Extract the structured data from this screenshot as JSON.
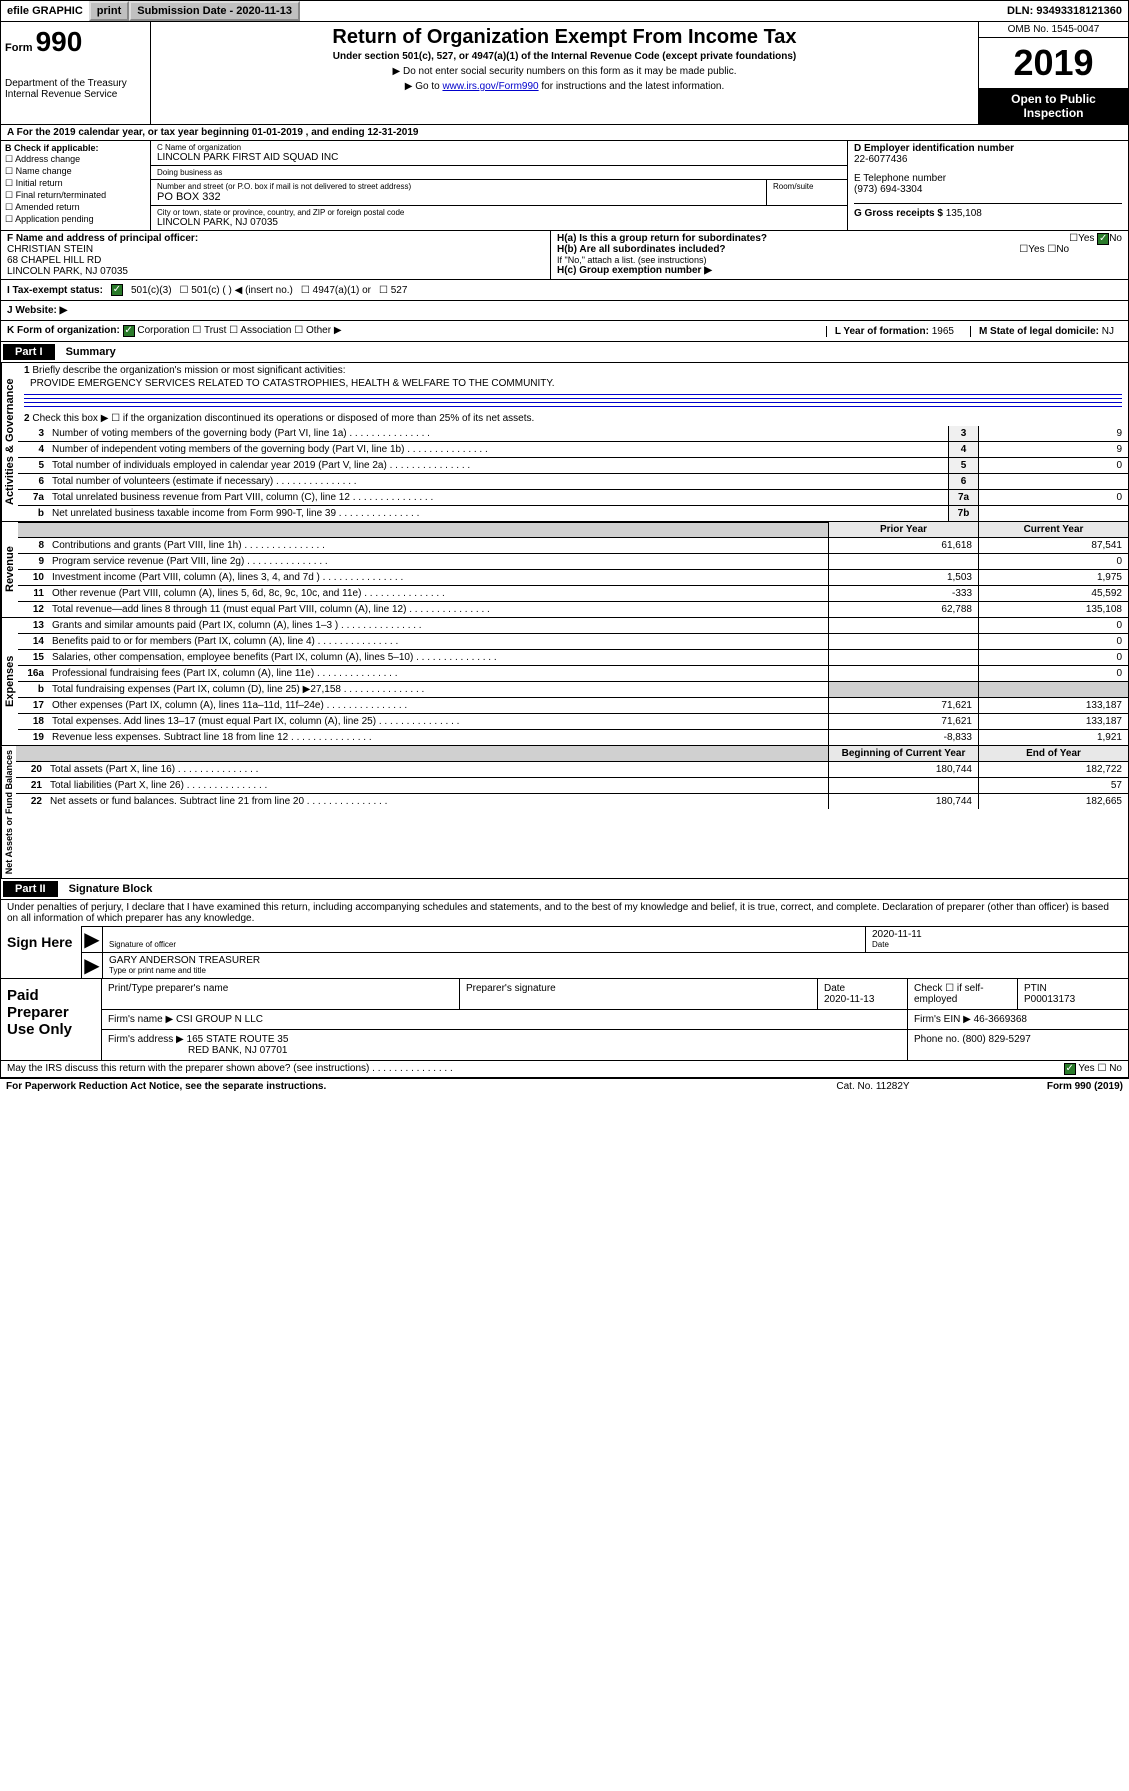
{
  "topbar": {
    "efile_label": "efile GRAPHIC",
    "print_btn": "print",
    "submission_label": "Submission Date",
    "submission_date": "2020-11-13",
    "dln_label": "DLN:",
    "dln_value": "93493318121360"
  },
  "header": {
    "form_label": "Form",
    "form_number": "990",
    "department": "Department of the Treasury\nInternal Revenue Service",
    "title": "Return of Organization Exempt From Income Tax",
    "subtitle": "Under section 501(c), 527, or 4947(a)(1) of the Internal Revenue Code (except private foundations)",
    "instruction1": "▶ Do not enter social security numbers on this form as it may be made public.",
    "instruction2_pre": "▶ Go to ",
    "instruction2_link": "www.irs.gov/Form990",
    "instruction2_post": " for instructions and the latest information.",
    "omb": "OMB No. 1545-0047",
    "year": "2019",
    "open_public": "Open to Public Inspection"
  },
  "period": {
    "label_a": "A For the 2019 calendar year, or tax year beginning ",
    "begin": "01-01-2019",
    "middle": " , and ending ",
    "end": "12-31-2019"
  },
  "block_b": {
    "header": "B Check if applicable:",
    "opt1": "Address change",
    "opt2": "Name change",
    "opt3": "Initial return",
    "opt4": "Final return/terminated",
    "opt5": "Amended return",
    "opt6": "Application pending"
  },
  "block_c": {
    "name_label": "C Name of organization",
    "name": "LINCOLN PARK FIRST AID SQUAD INC",
    "dba_label": "Doing business as",
    "dba": "",
    "street_label": "Number and street (or P.O. box if mail is not delivered to street address)",
    "street": "PO BOX 332",
    "room_label": "Room/suite",
    "city_label": "City or town, state or province, country, and ZIP or foreign postal code",
    "city": "LINCOLN PARK, NJ  07035"
  },
  "block_d": {
    "ein_label": "D Employer identification number",
    "ein": "22-6077436",
    "phone_label": "E Telephone number",
    "phone": "(973) 694-3304",
    "receipts_label": "G Gross receipts $",
    "receipts": "135,108"
  },
  "block_f": {
    "label": "F Name and address of principal officer:",
    "name": "CHRISTIAN STEIN",
    "addr1": "68 CHAPEL HILL RD",
    "addr2": "LINCOLN PARK, NJ  07035"
  },
  "block_h": {
    "ha_label": "H(a)  Is this a group return for subordinates?",
    "hb_label": "H(b)  Are all subordinates included?",
    "hb_note": "If \"No,\" attach a list. (see instructions)",
    "hc_label": "H(c)  Group exemption number ▶",
    "yes": "Yes",
    "no": "No"
  },
  "status": {
    "label": "I   Tax-exempt status:",
    "opt1": "501(c)(3)",
    "opt2": "501(c) (   ) ◀ (insert no.)",
    "opt3": "4947(a)(1) or",
    "opt4": "527"
  },
  "website": {
    "label": "J   Website: ▶"
  },
  "korg": {
    "label": "K Form of organization:",
    "opt1": "Corporation",
    "opt2": "Trust",
    "opt3": "Association",
    "opt4": "Other ▶",
    "l_label": "L Year of formation:",
    "l_value": "1965",
    "m_label": "M State of legal domicile:",
    "m_value": "NJ"
  },
  "part1": {
    "header": "Part I",
    "title": "Summary",
    "section_gov": "Activities & Governance",
    "section_rev": "Revenue",
    "section_exp": "Expenses",
    "section_net": "Net Assets or Fund Balances",
    "line1_text": "Briefly describe the organization's mission or most significant activities:",
    "mission": "PROVIDE EMERGENCY SERVICES RELATED TO CATASTROPHIES, HEALTH & WELFARE TO THE COMMUNITY.",
    "line2_text": "Check this box ▶ ☐  if the organization discontinued its operations or disposed of more than 25% of its net assets.",
    "prior_year": "Prior Year",
    "current_year": "Current Year",
    "begin_year": "Beginning of Current Year",
    "end_year": "End of Year",
    "lines": [
      {
        "num": "3",
        "text": "Number of voting members of the governing body (Part VI, line 1a)",
        "box": "3",
        "val": "9"
      },
      {
        "num": "4",
        "text": "Number of independent voting members of the governing body (Part VI, line 1b)",
        "box": "4",
        "val": "9"
      },
      {
        "num": "5",
        "text": "Total number of individuals employed in calendar year 2019 (Part V, line 2a)",
        "box": "5",
        "val": "0"
      },
      {
        "num": "6",
        "text": "Total number of volunteers (estimate if necessary)",
        "box": "6",
        "val": ""
      },
      {
        "num": "7a",
        "text": "Total unrelated business revenue from Part VIII, column (C), line 12",
        "box": "7a",
        "val": "0"
      },
      {
        "num": "b",
        "text": "Net unrelated business taxable income from Form 990-T, line 39",
        "box": "7b",
        "val": ""
      }
    ],
    "revenue_lines": [
      {
        "num": "8",
        "text": "Contributions and grants (Part VIII, line 1h)",
        "prior": "61,618",
        "curr": "87,541"
      },
      {
        "num": "9",
        "text": "Program service revenue (Part VIII, line 2g)",
        "prior": "",
        "curr": "0"
      },
      {
        "num": "10",
        "text": "Investment income (Part VIII, column (A), lines 3, 4, and 7d )",
        "prior": "1,503",
        "curr": "1,975"
      },
      {
        "num": "11",
        "text": "Other revenue (Part VIII, column (A), lines 5, 6d, 8c, 9c, 10c, and 11e)",
        "prior": "-333",
        "curr": "45,592"
      },
      {
        "num": "12",
        "text": "Total revenue—add lines 8 through 11 (must equal Part VIII, column (A), line 12)",
        "prior": "62,788",
        "curr": "135,108"
      }
    ],
    "expense_lines": [
      {
        "num": "13",
        "text": "Grants and similar amounts paid (Part IX, column (A), lines 1–3 )",
        "prior": "",
        "curr": "0"
      },
      {
        "num": "14",
        "text": "Benefits paid to or for members (Part IX, column (A), line 4)",
        "prior": "",
        "curr": "0"
      },
      {
        "num": "15",
        "text": "Salaries, other compensation, employee benefits (Part IX, column (A), lines 5–10)",
        "prior": "",
        "curr": "0"
      },
      {
        "num": "16a",
        "text": "Professional fundraising fees (Part IX, column (A), line 11e)",
        "prior": "",
        "curr": "0"
      },
      {
        "num": "b",
        "text": "Total fundraising expenses (Part IX, column (D), line 25) ▶27,158",
        "prior": "shaded",
        "curr": "shaded"
      },
      {
        "num": "17",
        "text": "Other expenses (Part IX, column (A), lines 11a–11d, 11f–24e)",
        "prior": "71,621",
        "curr": "133,187"
      },
      {
        "num": "18",
        "text": "Total expenses. Add lines 13–17 (must equal Part IX, column (A), line 25)",
        "prior": "71,621",
        "curr": "133,187"
      },
      {
        "num": "19",
        "text": "Revenue less expenses. Subtract line 18 from line 12",
        "prior": "-8,833",
        "curr": "1,921"
      }
    ],
    "net_lines": [
      {
        "num": "20",
        "text": "Total assets (Part X, line 16)",
        "prior": "180,744",
        "curr": "182,722"
      },
      {
        "num": "21",
        "text": "Total liabilities (Part X, line 26)",
        "prior": "",
        "curr": "57"
      },
      {
        "num": "22",
        "text": "Net assets or fund balances. Subtract line 21 from line 20",
        "prior": "180,744",
        "curr": "182,665"
      }
    ]
  },
  "part2": {
    "header": "Part II",
    "title": "Signature Block",
    "perjury": "Under penalties of perjury, I declare that I have examined this return, including accompanying schedules and statements, and to the best of my knowledge and belief, it is true, correct, and complete. Declaration of preparer (other than officer) is based on all information of which preparer has any knowledge.",
    "sign_here": "Sign Here",
    "sig_officer": "Signature of officer",
    "sig_date": "2020-11-11",
    "date_label": "Date",
    "officer_name": "GARY ANDERSON  TREASURER",
    "type_name": "Type or print name and title",
    "paid_label": "Paid Preparer Use Only",
    "prep_name_label": "Print/Type preparer's name",
    "prep_sig_label": "Preparer's signature",
    "prep_date_label": "Date",
    "prep_date": "2020-11-13",
    "check_label": "Check ☐ if self-employed",
    "ptin_label": "PTIN",
    "ptin": "P00013173",
    "firm_name_label": "Firm's name    ▶",
    "firm_name": "CSI GROUP N LLC",
    "firm_ein_label": "Firm's EIN ▶",
    "firm_ein": "46-3669368",
    "firm_addr_label": "Firm's address ▶",
    "firm_addr1": "165 STATE ROUTE 35",
    "firm_addr2": "RED BANK, NJ  07701",
    "phone_label": "Phone no.",
    "phone": "(800) 829-5297",
    "discuss": "May the IRS discuss this return with the preparer shown above? (see instructions)",
    "yes": "Yes",
    "no": "No"
  },
  "footer": {
    "notice": "For Paperwork Reduction Act Notice, see the separate instructions.",
    "cat": "Cat. No. 11282Y",
    "form": "Form 990 (2019)"
  }
}
